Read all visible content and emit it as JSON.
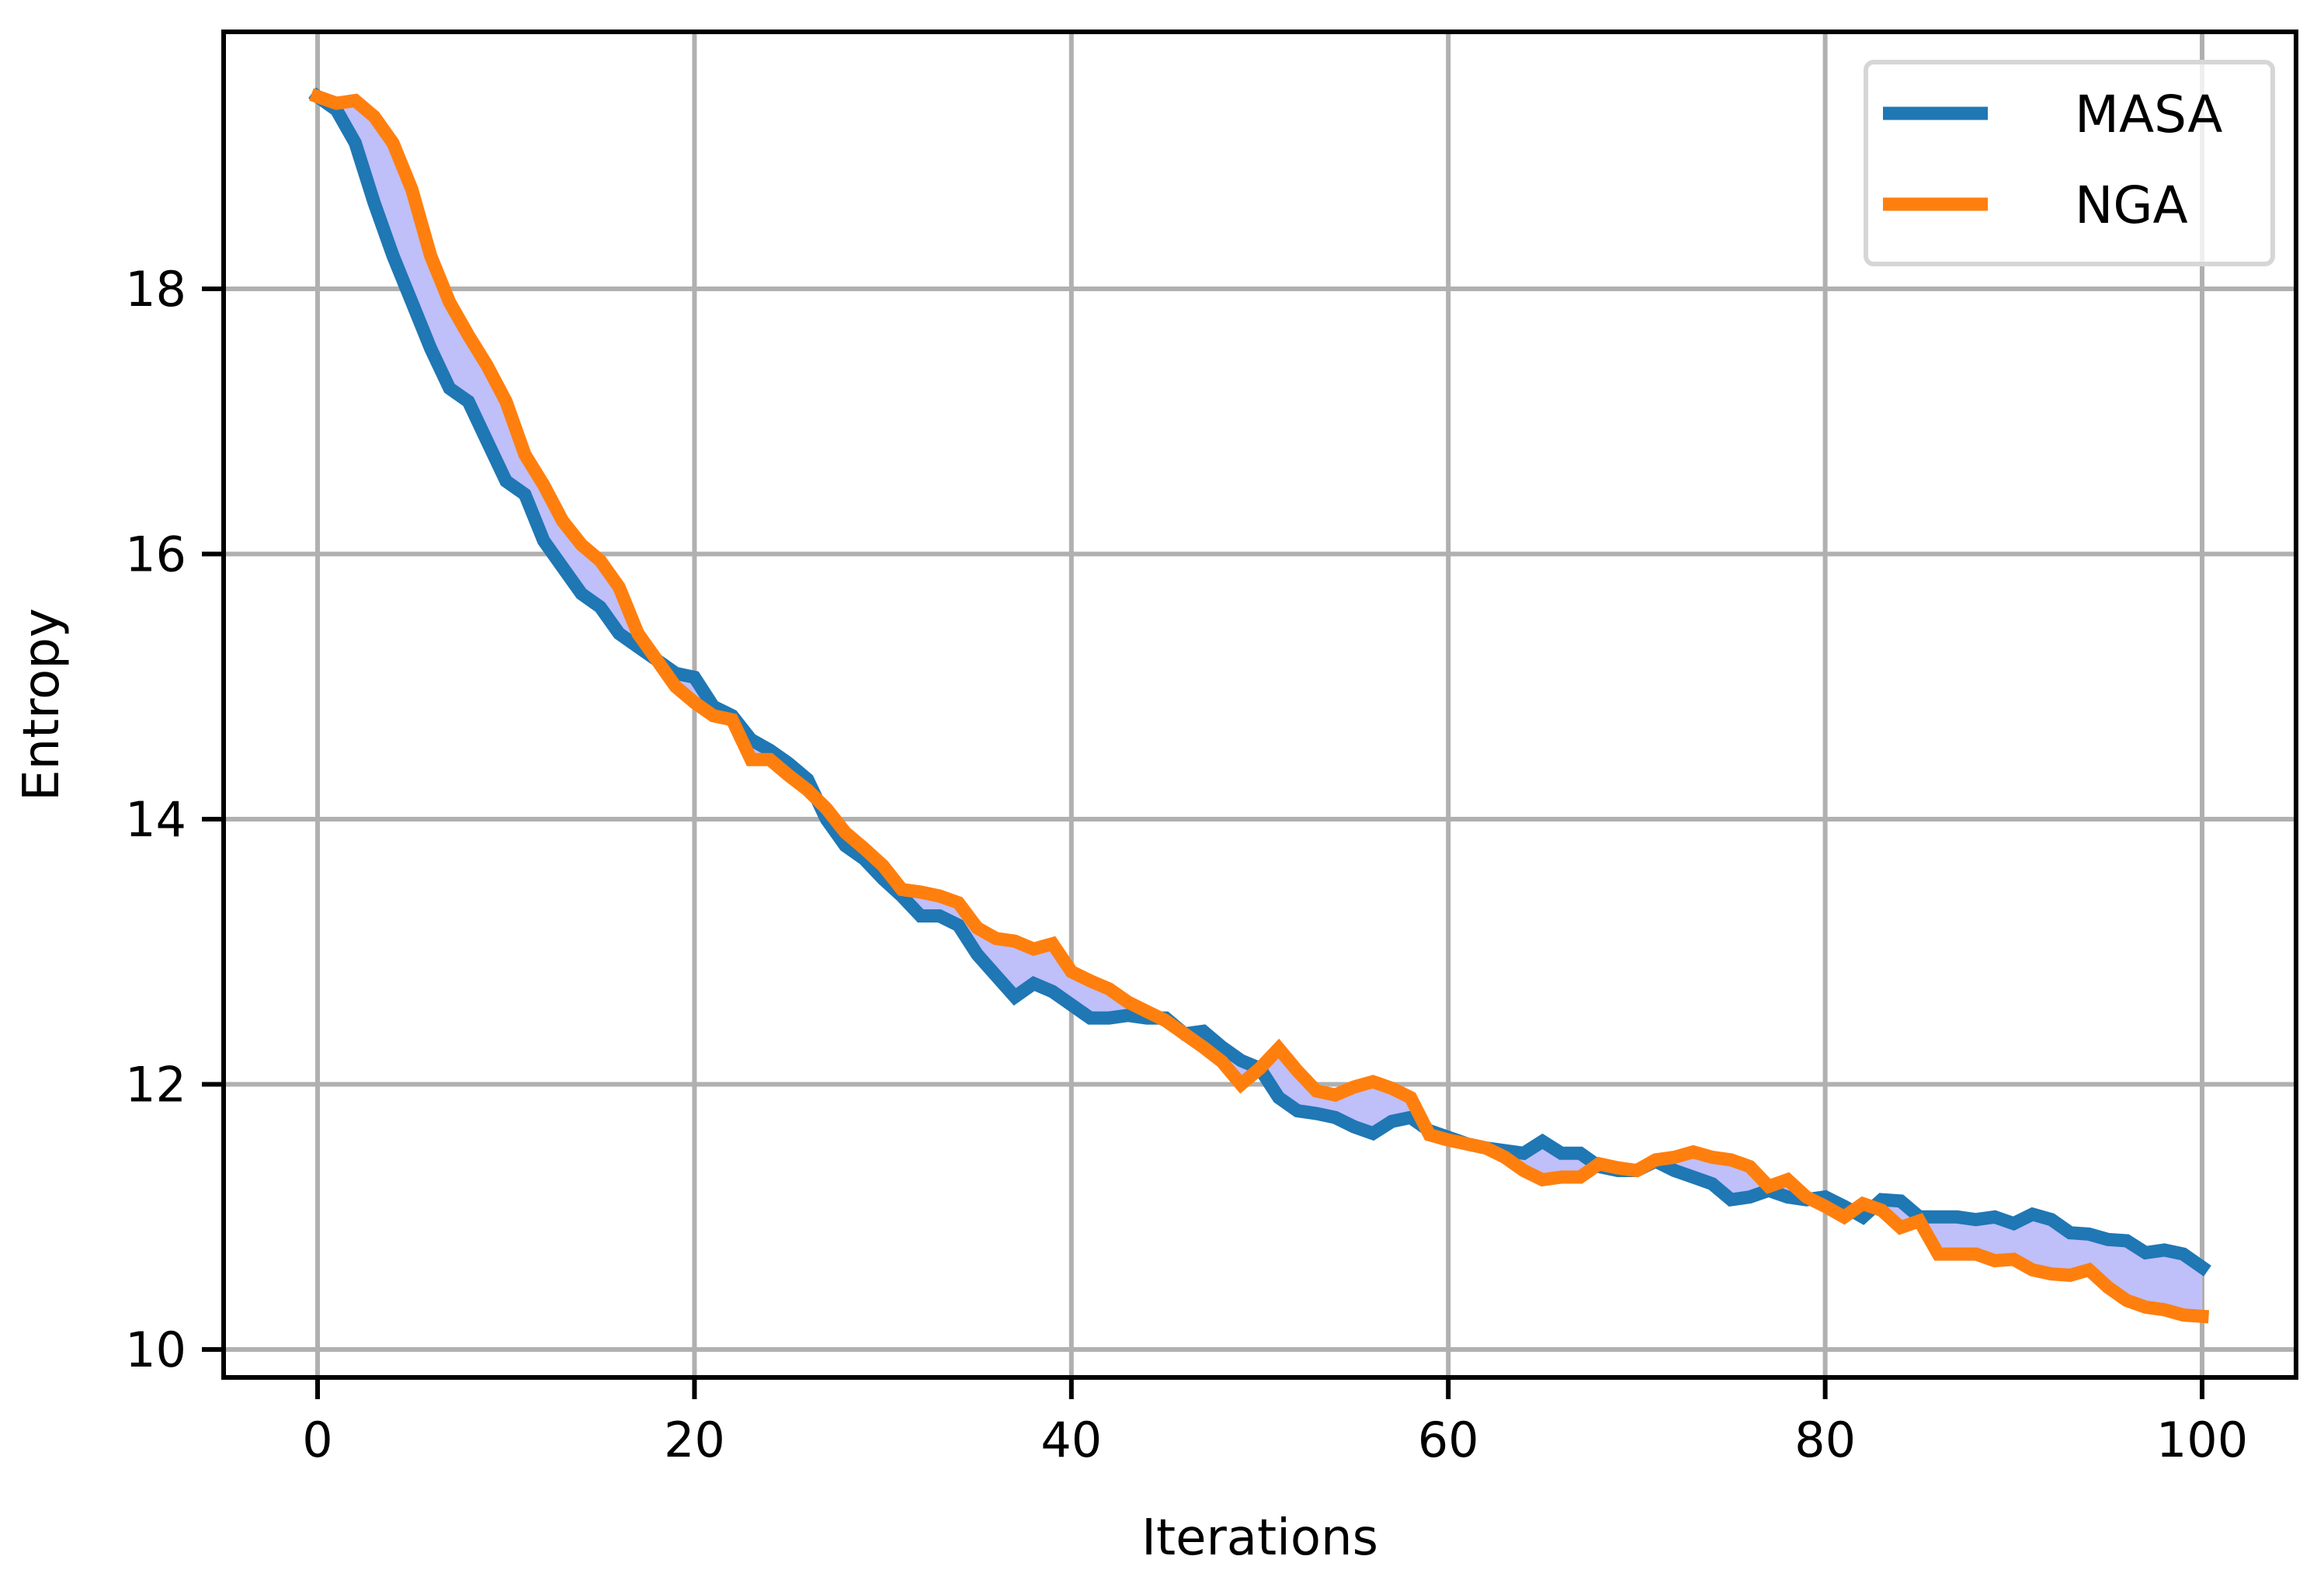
{
  "chart_data": {
    "type": "line",
    "title": "",
    "xlabel": "Iterations",
    "ylabel": "Entropy",
    "xlim": [
      -5,
      105
    ],
    "ylim": [
      9.8,
      19.9
    ],
    "xticks": [
      0,
      20,
      40,
      60,
      80,
      100
    ],
    "yticks": [
      10,
      12,
      14,
      16,
      18
    ],
    "grid": true,
    "legend_position": "upper right",
    "fill_between": {
      "between": [
        "MASA",
        "NGA"
      ],
      "color": "#bfbffa"
    },
    "x": [
      0,
      1,
      2,
      3,
      4,
      5,
      6,
      7,
      8,
      9,
      10,
      11,
      12,
      13,
      14,
      15,
      16,
      17,
      18,
      19,
      20,
      21,
      22,
      23,
      24,
      25,
      26,
      27,
      28,
      29,
      30,
      31,
      32,
      33,
      34,
      35,
      36,
      37,
      38,
      39,
      40,
      41,
      42,
      43,
      44,
      45,
      46,
      47,
      48,
      49,
      50,
      51,
      52,
      53,
      54,
      55,
      56,
      57,
      58,
      59,
      60,
      61,
      62,
      63,
      64,
      65,
      66,
      67,
      68,
      69,
      70,
      71,
      72,
      73,
      74,
      75,
      76,
      77,
      78,
      79,
      80,
      81,
      82,
      83,
      84,
      85,
      86,
      87,
      88,
      89,
      90,
      91,
      92,
      93,
      94,
      95,
      96,
      97,
      98,
      99,
      100
    ],
    "series": [
      {
        "name": "MASA",
        "color": "#1f77b4",
        "values": [
          19.45,
          19.35,
          19.1,
          18.65,
          18.25,
          17.9,
          17.55,
          17.25,
          17.15,
          16.85,
          16.55,
          16.45,
          16.1,
          15.9,
          15.7,
          15.6,
          15.4,
          15.3,
          15.2,
          15.1,
          15.07,
          14.85,
          14.78,
          14.6,
          14.52,
          14.42,
          14.3,
          14.0,
          13.8,
          13.7,
          13.55,
          13.42,
          13.27,
          13.27,
          13.2,
          12.98,
          12.82,
          12.66,
          12.76,
          12.7,
          12.6,
          12.5,
          12.5,
          12.52,
          12.5,
          12.5,
          12.38,
          12.4,
          12.28,
          12.18,
          12.12,
          11.9,
          11.8,
          11.78,
          11.75,
          11.68,
          11.63,
          11.72,
          11.75,
          11.65,
          11.6,
          11.55,
          11.52,
          11.5,
          11.48,
          11.57,
          11.48,
          11.48,
          11.38,
          11.35,
          11.35,
          11.42,
          11.35,
          11.3,
          11.25,
          11.13,
          11.15,
          11.2,
          11.15,
          11.13,
          11.15,
          11.08,
          11.0,
          11.13,
          11.12,
          11.0,
          11.0,
          11.0,
          10.98,
          11.0,
          10.95,
          11.02,
          10.98,
          10.88,
          10.87,
          10.83,
          10.82,
          10.73,
          10.75,
          10.72,
          10.62
        ]
      },
      {
        "name": "NGA",
        "color": "#ff7f0e",
        "values": [
          19.45,
          19.4,
          19.42,
          19.3,
          19.1,
          18.75,
          18.25,
          17.9,
          17.65,
          17.42,
          17.15,
          16.75,
          16.52,
          16.25,
          16.07,
          15.95,
          15.75,
          15.4,
          15.2,
          15.0,
          14.88,
          14.78,
          14.75,
          14.45,
          14.45,
          14.33,
          14.22,
          14.08,
          13.9,
          13.78,
          13.65,
          13.47,
          13.45,
          13.42,
          13.37,
          13.18,
          13.1,
          13.08,
          13.02,
          13.06,
          12.85,
          12.78,
          12.72,
          12.62,
          12.55,
          12.48,
          12.38,
          12.28,
          12.17,
          12.0,
          12.12,
          12.27,
          12.1,
          11.95,
          11.92,
          11.98,
          12.02,
          11.97,
          11.9,
          11.62,
          11.58,
          11.55,
          11.52,
          11.45,
          11.35,
          11.28,
          11.3,
          11.3,
          11.4,
          11.37,
          11.35,
          11.43,
          11.45,
          11.49,
          11.45,
          11.43,
          11.38,
          11.23,
          11.28,
          11.15,
          11.08,
          11.0,
          11.1,
          11.05,
          10.92,
          10.97,
          10.72,
          10.72,
          10.72,
          10.67,
          10.68,
          10.6,
          10.57,
          10.56,
          10.6,
          10.47,
          10.37,
          10.32,
          10.3,
          10.26,
          10.25
        ]
      }
    ]
  },
  "legend": {
    "items": [
      {
        "label": "MASA",
        "color": "#1f77b4"
      },
      {
        "label": "NGA",
        "color": "#ff7f0e"
      }
    ]
  },
  "style": {
    "grid_color": "#b0b0b0",
    "axis_color": "#000000",
    "fill_color": "#bfbffa",
    "legend_border": "#d6d6d6"
  }
}
